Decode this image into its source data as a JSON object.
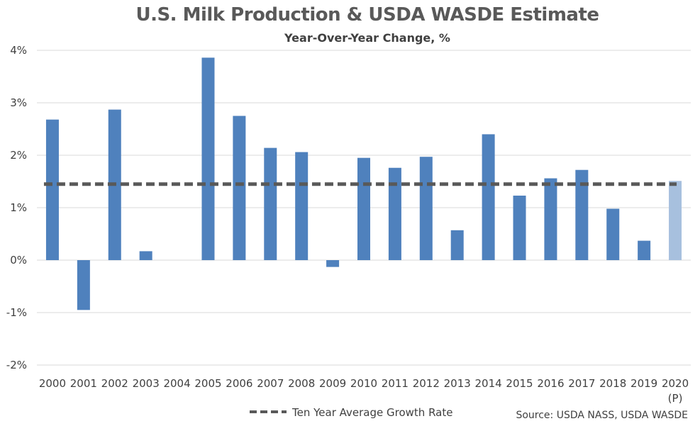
{
  "chart_data": {
    "type": "bar",
    "title": "U.S. Milk Production & USDA WASDE Estimate",
    "subtitle": "Year-Over-Year Change, %",
    "categories": [
      "2000",
      "2001",
      "2002",
      "2003",
      "2004",
      "2005",
      "2006",
      "2007",
      "2008",
      "2009",
      "2010",
      "2011",
      "2012",
      "2013",
      "2014",
      "2015",
      "2016",
      "2017",
      "2018",
      "2019",
      "2020"
    ],
    "category_sublabels": {
      "2020": "(P)"
    },
    "values": [
      2.68,
      -0.95,
      2.87,
      0.17,
      0.0,
      3.86,
      2.75,
      2.14,
      2.06,
      -0.13,
      1.95,
      1.76,
      1.97,
      0.57,
      2.4,
      1.23,
      1.56,
      1.72,
      0.98,
      0.37,
      1.51
    ],
    "projected_category": "2020",
    "ylim": [
      -2,
      4
    ],
    "yticks": [
      -2,
      -1,
      0,
      1,
      2,
      3,
      4
    ],
    "ytick_labels": [
      "-2%",
      "-1%",
      "0%",
      "1%",
      "2%",
      "3%",
      "4%"
    ],
    "reference_line": {
      "name": "Ten Year Average Growth Rate",
      "value": 1.45,
      "style": "dashed"
    },
    "legend_placement": "bottom",
    "source": "Source: USDA NASS, USDA WASDE",
    "grid": true,
    "colors": {
      "bar": "#4f81bd",
      "projected_bar": "#a7c0de",
      "reference_line": "#595959",
      "grid": "#d9d9d9"
    }
  }
}
